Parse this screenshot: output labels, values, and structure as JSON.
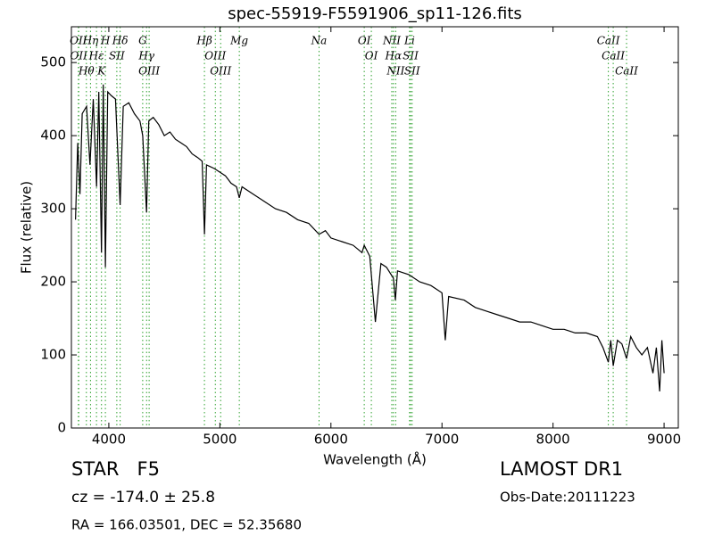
{
  "chart_data": {
    "type": "line",
    "title": "spec-55919-F5591906_sp11-126.fits",
    "xlabel": "Wavelength (Å)",
    "ylabel": "Flux (relative)",
    "xlim": [
      3663,
      9128
    ],
    "ylim": [
      0,
      549
    ],
    "xticks": [
      4000,
      5000,
      6000,
      7000,
      8000,
      9000
    ],
    "yticks": [
      0,
      100,
      200,
      300,
      400,
      500
    ],
    "x": [
      3700,
      3720,
      3740,
      3760,
      3800,
      3830,
      3860,
      3890,
      3910,
      3934,
      3950,
      3969,
      3990,
      4020,
      4060,
      4102,
      4130,
      4180,
      4230,
      4280,
      4305,
      4340,
      4360,
      4400,
      4450,
      4500,
      4550,
      4600,
      4650,
      4700,
      4750,
      4800,
      4840,
      4861,
      4880,
      4950,
      5000,
      5050,
      5100,
      5150,
      5175,
      5200,
      5300,
      5400,
      5500,
      5600,
      5700,
      5800,
      5893,
      5950,
      6000,
      6100,
      6200,
      6280,
      6300,
      6350,
      6400,
      6450,
      6500,
      6563,
      6580,
      6600,
      6700,
      6800,
      6900,
      7000,
      7030,
      7060,
      7200,
      7300,
      7400,
      7500,
      7600,
      7700,
      7800,
      7900,
      8000,
      8100,
      8200,
      8300,
      8400,
      8450,
      8498,
      8520,
      8542,
      8580,
      8620,
      8662,
      8700,
      8750,
      8800,
      8850,
      8900,
      8930,
      8960,
      8980,
      9000
    ],
    "series": [
      {
        "color": "#000000",
        "values": [
          285,
          390,
          320,
          430,
          440,
          360,
          450,
          330,
          460,
          240,
          470,
          220,
          460,
          455,
          450,
          305,
          440,
          445,
          430,
          420,
          400,
          295,
          420,
          425,
          415,
          400,
          405,
          395,
          390,
          385,
          375,
          370,
          365,
          265,
          360,
          355,
          350,
          345,
          335,
          330,
          315,
          330,
          320,
          310,
          300,
          295,
          285,
          280,
          265,
          270,
          260,
          255,
          250,
          240,
          250,
          235,
          145,
          225,
          220,
          205,
          175,
          215,
          210,
          200,
          195,
          185,
          120,
          180,
          175,
          165,
          160,
          155,
          150,
          145,
          145,
          140,
          135,
          135,
          130,
          130,
          125,
          110,
          90,
          120,
          85,
          120,
          115,
          95,
          125,
          110,
          100,
          110,
          75,
          110,
          50,
          120,
          75
        ]
      }
    ],
    "lines_color": "#2ca02c",
    "spectral_lines": [
      {
        "label": "OII",
        "wavelength": 3726
      },
      {
        "label": "OII",
        "wavelength": 3729
      },
      {
        "label": "Hθ",
        "wavelength": 3798
      },
      {
        "label": "Hη",
        "wavelength": 3835
      },
      {
        "label": "Hε",
        "wavelength": 3889
      },
      {
        "label": "K",
        "wavelength": 3934
      },
      {
        "label": "H",
        "wavelength": 3969
      },
      {
        "label": "SII",
        "wavelength": 4072
      },
      {
        "label": "Hδ",
        "wavelength": 4102
      },
      {
        "label": "G",
        "wavelength": 4305
      },
      {
        "label": "Hγ",
        "wavelength": 4340
      },
      {
        "label": "OIII",
        "wavelength": 4363
      },
      {
        "label": "Hβ",
        "wavelength": 4861
      },
      {
        "label": "OIII",
        "wavelength": 4959
      },
      {
        "label": "OIII",
        "wavelength": 5007
      },
      {
        "label": "Mg",
        "wavelength": 5175
      },
      {
        "label": "Na",
        "wavelength": 5893
      },
      {
        "label": "OI",
        "wavelength": 6300
      },
      {
        "label": "OI",
        "wavelength": 6364
      },
      {
        "label": "NII",
        "wavelength": 6548
      },
      {
        "label": "Hα",
        "wavelength": 6563
      },
      {
        "label": "NII",
        "wavelength": 6583
      },
      {
        "label": "Li",
        "wavelength": 6708
      },
      {
        "label": "SII",
        "wavelength": 6717
      },
      {
        "label": "SII",
        "wavelength": 6731
      },
      {
        "label": "CaII",
        "wavelength": 8498
      },
      {
        "label": "CaII",
        "wavelength": 8542
      },
      {
        "label": "CaII",
        "wavelength": 8662
      }
    ]
  },
  "footer": {
    "class": "STAR   F5",
    "survey": "LAMOST DR1",
    "cz": "cz = -174.0 ± 25.8",
    "obs_date": "Obs-Date:20111223",
    "coords": "RA = 166.03501, DEC = 52.35680"
  }
}
